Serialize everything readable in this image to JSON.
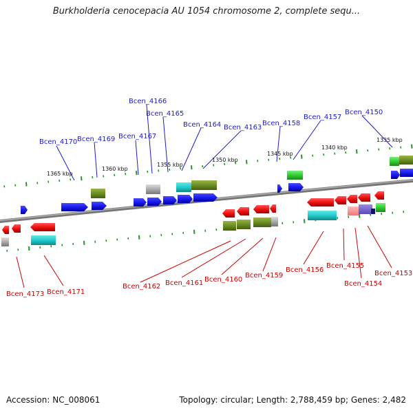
{
  "title": "Burkholderia cenocepacia AU 1054 chromosome 2, complete sequ...",
  "footer": {
    "accession": "Accession: NC_008061",
    "summary": "Topology: circular; Length: 2,788,459 bp; Genes: 2,482"
  },
  "scale_labels": [
    "1365 kbp",
    "1360 kbp",
    "1355 kbp",
    "1350 kbp",
    "1345 kbp",
    "1340 kbp",
    "1335 kbp"
  ],
  "colors": {
    "forward_cds": "#1a1aee",
    "reverse_cds": "#ee1111",
    "rna": "#22cccc",
    "other": "#6b8e23",
    "green": "#33cc33",
    "grey": "#999999",
    "backbone": "#888888",
    "ticks": "#229922",
    "label_forward": "#1b1bd0",
    "label_reverse": "#cc0000"
  },
  "labels_top": [
    "Bcen_4170",
    "Bcen_4169",
    "Bcen_4167",
    "Bcen_4166",
    "Bcen_4165",
    "Bcen_4164",
    "Bcen_4163",
    "Bcen_4158",
    "Bcen_4157",
    "Bcen_4150"
  ],
  "labels_bottom": [
    "Bcen_4173",
    "Bcen_4171",
    "Bcen_4162",
    "Bcen_4161",
    "Bcen_4160",
    "Bcen_4159",
    "Bcen_4156",
    "Bcen_4155",
    "Bcen_4154",
    "Bcen_4153"
  ]
}
